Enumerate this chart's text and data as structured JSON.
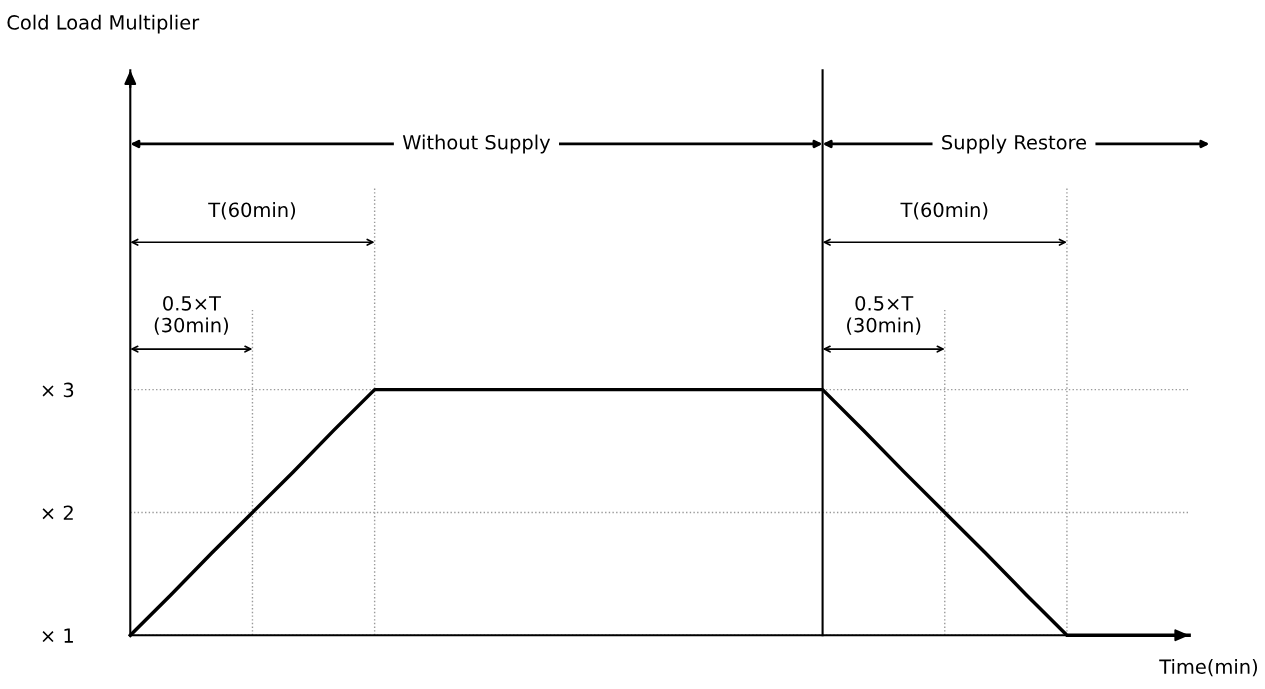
{
  "chart_data": {
    "type": "line",
    "title": "Cold Load Multiplier",
    "xlabel": "Time(min)",
    "categories": [
      null,
      null,
      null,
      null,
      null,
      null,
      null,
      null,
      null,
      null,
      null,
      null,
      null,
      null,
      null,
      null,
      null,
      null,
      null,
      null,
      null,
      null,
      null,
      null,
      null,
      null,
      null
    ],
    "series": [
      {
        "color": "#000000",
        "values": [
          1,
          1.33,
          1.67,
          2,
          2.33,
          2.67,
          3,
          3,
          3,
          3,
          3,
          3,
          3,
          3,
          3,
          3,
          3,
          3,
          2.67,
          2.33,
          2,
          1.67,
          1.33,
          1,
          1,
          1,
          1
        ]
      }
    ],
    "ylim": [
      1,
      5.6
    ],
    "yticks": [
      {
        "value": 1,
        "label": "× 1"
      },
      {
        "value": 2,
        "label": "× 2"
      },
      {
        "value": 3,
        "label": "× 3"
      }
    ],
    "tick_labels": "y",
    "grid": "y",
    "marker": "none",
    "line_style": "solid",
    "annotations": [
      "Without Supply",
      "Supply Restore",
      "T(60min)",
      "T(60min)",
      "0.5×T\n(30min)",
      "0.5×T\n(30min)"
    ]
  }
}
